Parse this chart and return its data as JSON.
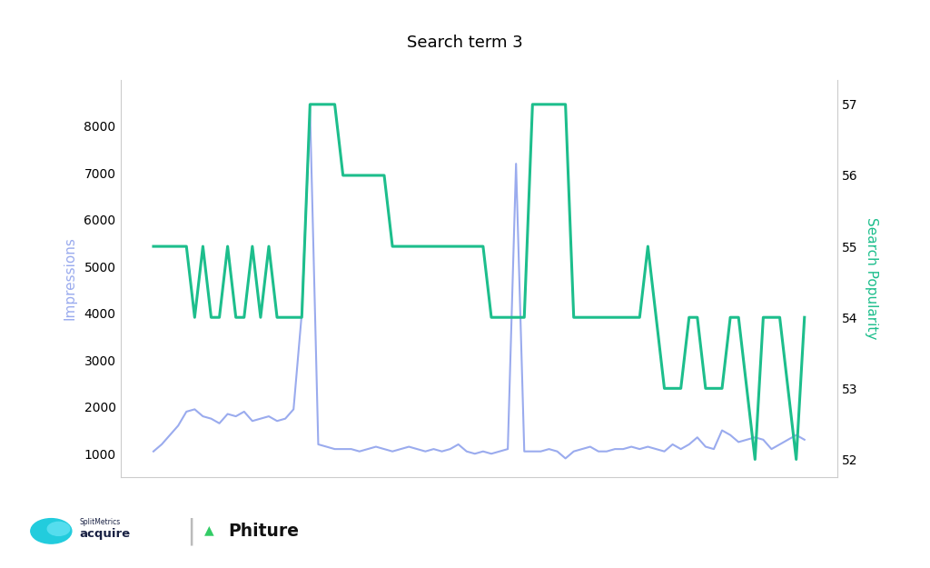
{
  "title": "Search term 3",
  "impressions_color": "#9aabee",
  "search_pop_color": "#1dbe8c",
  "left_ylabel": "Impressions",
  "right_ylabel": "Search Popularity",
  "left_ylim": [
    500,
    9000
  ],
  "right_ylim": [
    51.75,
    57.35
  ],
  "left_yticks": [
    1000,
    2000,
    3000,
    4000,
    5000,
    6000,
    7000,
    8000
  ],
  "right_yticks": [
    52,
    53,
    54,
    55,
    56,
    57
  ],
  "impressions": [
    1050,
    1200,
    1400,
    1600,
    1900,
    1950,
    1800,
    1750,
    1650,
    1850,
    1800,
    1900,
    1700,
    1750,
    1800,
    1700,
    1750,
    1950,
    4000,
    8350,
    1200,
    1150,
    1100,
    1100,
    1100,
    1050,
    1100,
    1150,
    1100,
    1050,
    1100,
    1150,
    1100,
    1050,
    1100,
    1050,
    1100,
    1200,
    1050,
    1000,
    1050,
    1000,
    1050,
    1100,
    7200,
    1050,
    1050,
    1050,
    1100,
    1050,
    900,
    1050,
    1100,
    1150,
    1050,
    1050,
    1100,
    1100,
    1150,
    1100,
    1150,
    1100,
    1050,
    1200,
    1100,
    1200,
    1350,
    1150,
    1100,
    1500,
    1400,
    1250,
    1300,
    1350,
    1300,
    1100,
    1200,
    1300,
    1400,
    1300
  ],
  "search_pop": [
    55.0,
    55.0,
    55.0,
    55.0,
    55.0,
    54.0,
    55.0,
    54.0,
    54.0,
    55.0,
    54.0,
    54.0,
    55.0,
    54.0,
    55.0,
    54.0,
    54.0,
    54.0,
    54.0,
    57.0,
    57.0,
    57.0,
    57.0,
    56.0,
    56.0,
    56.0,
    56.0,
    56.0,
    56.0,
    55.0,
    55.0,
    55.0,
    55.0,
    55.0,
    55.0,
    55.0,
    55.0,
    55.0,
    55.0,
    55.0,
    55.0,
    54.0,
    54.0,
    54.0,
    54.0,
    54.0,
    57.0,
    57.0,
    57.0,
    57.0,
    57.0,
    54.0,
    54.0,
    54.0,
    54.0,
    54.0,
    54.0,
    54.0,
    54.0,
    54.0,
    55.0,
    54.0,
    53.0,
    53.0,
    53.0,
    54.0,
    54.0,
    53.0,
    53.0,
    53.0,
    54.0,
    54.0,
    53.0,
    52.0,
    54.0,
    54.0,
    54.0,
    53.0,
    52.0,
    54.0
  ],
  "background_color": "#ffffff",
  "title_fontsize": 13,
  "axis_label_fontsize": 11,
  "tick_fontsize": 10,
  "spine_color": "#cccccc",
  "logo_circle_color": "#22cccc",
  "logo_arrow_color": "#33cc66",
  "logo_text_color": "#1a2244",
  "phiture_text_color": "#111111"
}
